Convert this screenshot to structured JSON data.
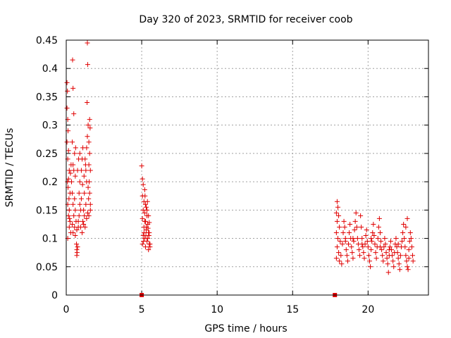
{
  "chart_data": {
    "type": "scatter",
    "title": "Day 320 of 2023, SRMTID for receiver coob",
    "xlabel": "GPS time / hours",
    "ylabel": "SRMTID / TECUs",
    "xlim": [
      0,
      24
    ],
    "ylim": [
      0,
      0.45
    ],
    "xticks": [
      0,
      5,
      10,
      15,
      20
    ],
    "yticks": [
      0,
      0.05,
      0.1,
      0.15,
      0.2,
      0.25,
      0.3,
      0.35,
      0.4,
      0.45
    ],
    "xtick_labels": [
      "0",
      "5",
      "10",
      "15",
      "20"
    ],
    "ytick_labels": [
      "0",
      "0.05",
      "0.1",
      "0.15",
      "0.2",
      "0.25",
      "0.3",
      "0.35",
      "0.4",
      "0.45"
    ],
    "grid": true,
    "marker": "+",
    "color": "#e00000",
    "series": [
      {
        "name": "SRMTID",
        "points": [
          [
            0.05,
            0.375
          ],
          [
            0.08,
            0.36
          ],
          [
            0.05,
            0.33
          ],
          [
            0.1,
            0.31
          ],
          [
            0.12,
            0.29
          ],
          [
            0.05,
            0.27
          ],
          [
            0.15,
            0.255
          ],
          [
            0.1,
            0.24
          ],
          [
            0.2,
            0.22
          ],
          [
            0.08,
            0.2
          ],
          [
            0.12,
            0.19
          ],
          [
            0.18,
            0.17
          ],
          [
            0.1,
            0.16
          ],
          [
            0.2,
            0.15
          ],
          [
            0.15,
            0.14
          ],
          [
            0.25,
            0.13
          ],
          [
            0.2,
            0.12
          ],
          [
            0.3,
            0.11
          ],
          [
            0.1,
            0.1
          ],
          [
            0.22,
            0.135
          ],
          [
            0.35,
            0.2
          ],
          [
            0.42,
            0.415
          ],
          [
            0.45,
            0.365
          ],
          [
            0.5,
            0.32
          ],
          [
            0.4,
            0.27
          ],
          [
            0.55,
            0.25
          ],
          [
            0.45,
            0.23
          ],
          [
            0.5,
            0.22
          ],
          [
            0.6,
            0.21
          ],
          [
            0.4,
            0.18
          ],
          [
            0.55,
            0.17
          ],
          [
            0.45,
            0.16
          ],
          [
            0.6,
            0.15
          ],
          [
            0.5,
            0.14
          ],
          [
            0.65,
            0.13
          ],
          [
            0.4,
            0.125
          ],
          [
            0.55,
            0.12
          ],
          [
            0.7,
            0.115
          ],
          [
            0.45,
            0.11
          ],
          [
            0.6,
            0.105
          ],
          [
            0.68,
            0.09
          ],
          [
            0.7,
            0.08
          ],
          [
            0.72,
            0.075
          ],
          [
            0.75,
            0.085
          ],
          [
            0.7,
            0.07
          ],
          [
            0.8,
            0.12
          ],
          [
            0.85,
            0.14
          ],
          [
            0.9,
            0.16
          ],
          [
            0.8,
            0.13
          ],
          [
            0.95,
            0.15
          ],
          [
            0.85,
            0.18
          ],
          [
            0.9,
            0.2
          ],
          [
            1.0,
            0.22
          ],
          [
            1.05,
            0.24
          ],
          [
            0.9,
            0.25
          ],
          [
            1.1,
            0.26
          ],
          [
            1.0,
            0.17
          ],
          [
            1.15,
            0.15
          ],
          [
            1.2,
            0.14
          ],
          [
            1.1,
            0.13
          ],
          [
            1.25,
            0.12
          ],
          [
            1.3,
            0.16
          ],
          [
            1.2,
            0.18
          ],
          [
            1.35,
            0.2
          ],
          [
            1.3,
            0.22
          ],
          [
            1.25,
            0.24
          ],
          [
            1.35,
            0.26
          ],
          [
            1.4,
            0.28
          ],
          [
            1.38,
            0.34
          ],
          [
            1.42,
            0.407
          ],
          [
            1.4,
            0.445
          ],
          [
            1.45,
            0.3
          ],
          [
            1.5,
            0.27
          ],
          [
            1.55,
            0.25
          ],
          [
            1.5,
            0.23
          ],
          [
            1.6,
            0.22
          ],
          [
            1.45,
            0.19
          ],
          [
            1.55,
            0.18
          ],
          [
            1.6,
            0.15
          ],
          [
            1.5,
            0.14
          ],
          [
            1.55,
            0.31
          ],
          [
            1.58,
            0.295
          ],
          [
            1.52,
            0.2
          ],
          [
            1.48,
            0.17
          ],
          [
            1.6,
            0.16
          ],
          [
            1.42,
            0.145
          ],
          [
            1.35,
            0.135
          ],
          [
            1.15,
            0.125
          ],
          [
            1.05,
            0.11
          ],
          [
            0.95,
            0.12
          ],
          [
            1.08,
            0.195
          ],
          [
            1.18,
            0.21
          ],
          [
            1.28,
            0.23
          ],
          [
            0.75,
            0.22
          ],
          [
            0.82,
            0.24
          ],
          [
            0.62,
            0.26
          ],
          [
            0.32,
            0.23
          ],
          [
            0.28,
            0.215
          ],
          [
            0.15,
            0.205
          ],
          [
            0.25,
            0.18
          ],
          [
            5.0,
            0.228
          ],
          [
            5.05,
            0.205
          ],
          [
            5.1,
            0.195
          ],
          [
            5.2,
            0.186
          ],
          [
            5.05,
            0.175
          ],
          [
            5.15,
            0.165
          ],
          [
            5.25,
            0.16
          ],
          [
            5.3,
            0.155
          ],
          [
            5.1,
            0.15
          ],
          [
            5.2,
            0.145
          ],
          [
            5.35,
            0.14
          ],
          [
            5.05,
            0.135
          ],
          [
            5.25,
            0.13
          ],
          [
            5.4,
            0.125
          ],
          [
            5.15,
            0.12
          ],
          [
            5.3,
            0.115
          ],
          [
            5.45,
            0.11
          ],
          [
            5.1,
            0.105
          ],
          [
            5.2,
            0.1
          ],
          [
            5.35,
            0.095
          ],
          [
            5.5,
            0.09
          ],
          [
            5.25,
            0.085
          ],
          [
            5.45,
            0.08
          ],
          [
            5.55,
            0.085
          ],
          [
            5.4,
            0.1
          ],
          [
            5.5,
            0.11
          ],
          [
            5.3,
            0.12
          ],
          [
            5.2,
            0.13
          ],
          [
            5.45,
            0.14
          ],
          [
            5.35,
            0.15
          ],
          [
            5.15,
            0.11
          ],
          [
            5.05,
            0.09
          ],
          [
            5.12,
            0.095
          ],
          [
            5.28,
            0.105
          ],
          [
            5.42,
            0.118
          ],
          [
            5.5,
            0.128
          ],
          [
            5.38,
            0.165
          ],
          [
            5.22,
            0.175
          ],
          [
            5.48,
            0.105
          ],
          [
            5.55,
            0.09
          ],
          [
            17.95,
            0.165
          ],
          [
            18.0,
            0.155
          ],
          [
            17.9,
            0.145
          ],
          [
            18.05,
            0.14
          ],
          [
            17.95,
            0.13
          ],
          [
            18.1,
            0.12
          ],
          [
            17.9,
            0.11
          ],
          [
            18.0,
            0.1
          ],
          [
            18.15,
            0.095
          ],
          [
            17.95,
            0.085
          ],
          [
            18.05,
            0.075
          ],
          [
            18.2,
            0.07
          ],
          [
            17.9,
            0.065
          ],
          [
            18.1,
            0.06
          ],
          [
            18.25,
            0.055
          ],
          [
            18.3,
            0.09
          ],
          [
            18.35,
            0.11
          ],
          [
            18.4,
            0.13
          ],
          [
            18.45,
            0.12
          ],
          [
            18.5,
            0.1
          ],
          [
            18.55,
            0.08
          ],
          [
            18.6,
            0.07
          ],
          [
            18.65,
            0.06
          ],
          [
            18.7,
            0.09
          ],
          [
            18.75,
            0.11
          ],
          [
            18.8,
            0.125
          ],
          [
            18.85,
            0.1
          ],
          [
            18.9,
            0.085
          ],
          [
            18.95,
            0.075
          ],
          [
            19.0,
            0.065
          ],
          [
            19.05,
            0.095
          ],
          [
            19.1,
            0.115
          ],
          [
            19.15,
            0.13
          ],
          [
            19.2,
            0.145
          ],
          [
            19.25,
            0.12
          ],
          [
            19.3,
            0.1
          ],
          [
            19.35,
            0.09
          ],
          [
            19.4,
            0.08
          ],
          [
            19.45,
            0.07
          ],
          [
            19.5,
            0.14
          ],
          [
            19.55,
            0.12
          ],
          [
            19.6,
            0.1
          ],
          [
            19.65,
            0.085
          ],
          [
            19.7,
            0.075
          ],
          [
            19.75,
            0.065
          ],
          [
            19.8,
            0.09
          ],
          [
            19.85,
            0.105
          ],
          [
            19.9,
            0.115
          ],
          [
            19.95,
            0.095
          ],
          [
            20.0,
            0.085
          ],
          [
            20.05,
            0.07
          ],
          [
            20.1,
            0.06
          ],
          [
            20.15,
            0.05
          ],
          [
            20.2,
            0.08
          ],
          [
            20.25,
            0.095
          ],
          [
            20.3,
            0.11
          ],
          [
            20.35,
            0.125
          ],
          [
            20.4,
            0.105
          ],
          [
            20.45,
            0.09
          ],
          [
            20.5,
            0.075
          ],
          [
            20.55,
            0.065
          ],
          [
            20.6,
            0.085
          ],
          [
            20.65,
            0.1
          ],
          [
            20.7,
            0.12
          ],
          [
            20.75,
            0.135
          ],
          [
            20.8,
            0.11
          ],
          [
            20.85,
            0.095
          ],
          [
            20.9,
            0.08
          ],
          [
            20.95,
            0.07
          ],
          [
            21.0,
            0.06
          ],
          [
            21.05,
            0.085
          ],
          [
            21.1,
            0.1
          ],
          [
            21.15,
            0.09
          ],
          [
            21.2,
            0.075
          ],
          [
            21.25,
            0.065
          ],
          [
            21.3,
            0.055
          ],
          [
            21.35,
            0.04
          ],
          [
            21.4,
            0.07
          ],
          [
            21.45,
            0.085
          ],
          [
            21.5,
            0.095
          ],
          [
            21.55,
            0.08
          ],
          [
            21.6,
            0.07
          ],
          [
            21.65,
            0.06
          ],
          [
            21.7,
            0.05
          ],
          [
            21.75,
            0.075
          ],
          [
            21.8,
            0.09
          ],
          [
            21.85,
            0.1
          ],
          [
            21.9,
            0.085
          ],
          [
            21.95,
            0.075
          ],
          [
            22.0,
            0.065
          ],
          [
            22.05,
            0.055
          ],
          [
            22.1,
            0.045
          ],
          [
            22.15,
            0.07
          ],
          [
            22.2,
            0.085
          ],
          [
            22.25,
            0.095
          ],
          [
            22.3,
            0.11
          ],
          [
            22.35,
            0.125
          ],
          [
            22.4,
            0.1
          ],
          [
            22.45,
            0.085
          ],
          [
            22.5,
            0.07
          ],
          [
            22.55,
            0.06
          ],
          [
            22.6,
            0.05
          ],
          [
            22.65,
            0.045
          ],
          [
            22.7,
            0.08
          ],
          [
            22.75,
            0.095
          ],
          [
            22.8,
            0.11
          ],
          [
            22.85,
            0.1
          ],
          [
            22.9,
            0.085
          ],
          [
            22.95,
            0.07
          ],
          [
            22.98,
            0.06
          ],
          [
            22.6,
            0.135
          ],
          [
            22.5,
            0.12
          ],
          [
            18.5,
            0.095
          ],
          [
            19.0,
            0.1
          ],
          [
            19.6,
            0.09
          ],
          [
            20.2,
            0.1
          ],
          [
            20.8,
            0.085
          ],
          [
            21.4,
            0.08
          ],
          [
            22.0,
            0.09
          ],
          [
            22.7,
            0.065
          ]
        ]
      },
      {
        "name": "zero-markers",
        "marker": "square",
        "points": [
          [
            5.0,
            0
          ],
          [
            17.8,
            0
          ]
        ]
      }
    ]
  }
}
